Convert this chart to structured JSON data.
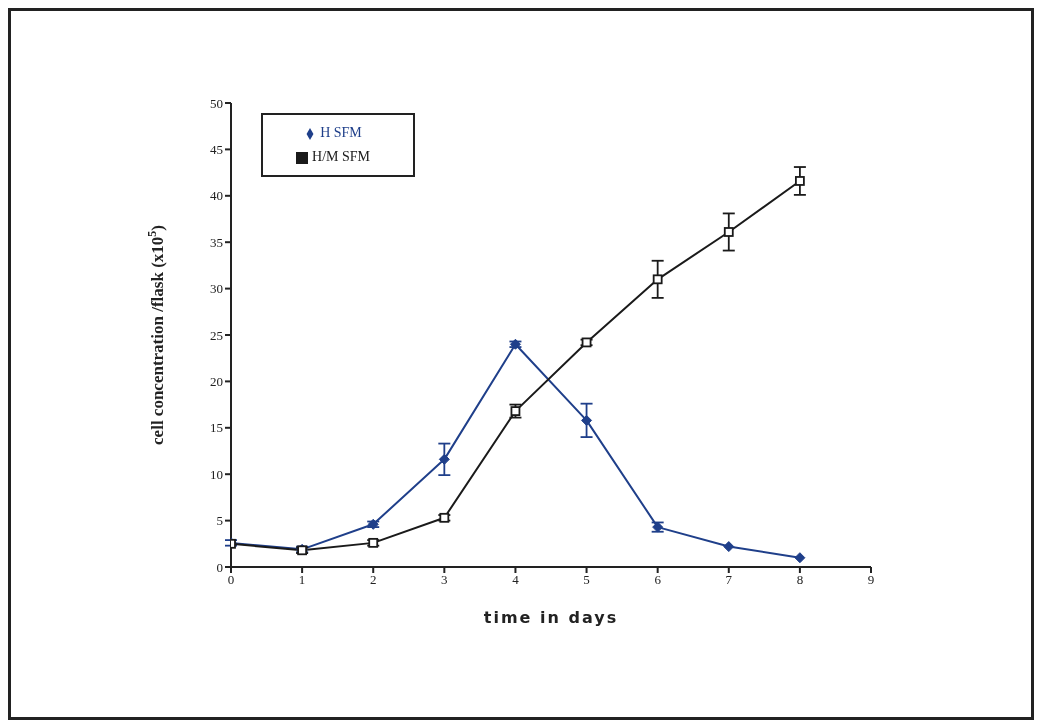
{
  "chart_data": {
    "type": "line",
    "xlabel": "time in days",
    "ylabel": "cell concentration /flask (x10$^{5}$)",
    "x": [
      0,
      1,
      2,
      3,
      4,
      5,
      6,
      7,
      8
    ],
    "series": [
      {
        "name": "H/M SFM",
        "color": "#1a1a1a",
        "marker": "square",
        "values": [
          2.5,
          1.8,
          2.6,
          5.3,
          16.8,
          24.2,
          31,
          36.1,
          41.6
        ],
        "errors": [
          null,
          0.3,
          0.3,
          0.3,
          0.7,
          0.3,
          2,
          2,
          1.5
        ]
      },
      {
        "name": "H SFM",
        "color": "#1f3f8a",
        "marker": "diamond",
        "values": [
          2.6,
          1.9,
          4.6,
          11.6,
          24.0,
          15.8,
          4.3,
          2.2,
          1.0
        ],
        "errors": [
          0.3,
          0.3,
          0.3,
          1.7,
          0.3,
          1.8,
          0.5,
          null,
          null
        ]
      }
    ],
    "xlim": [
      0,
      9
    ],
    "xticks": [
      0,
      1,
      2,
      3,
      4,
      5,
      6,
      7,
      8,
      9
    ],
    "ylim": [
      0,
      50
    ],
    "yticks": [
      0,
      5,
      10,
      15,
      20,
      25,
      30,
      35,
      40,
      45,
      50
    ],
    "legend": "top left",
    "line_style": "solid"
  }
}
